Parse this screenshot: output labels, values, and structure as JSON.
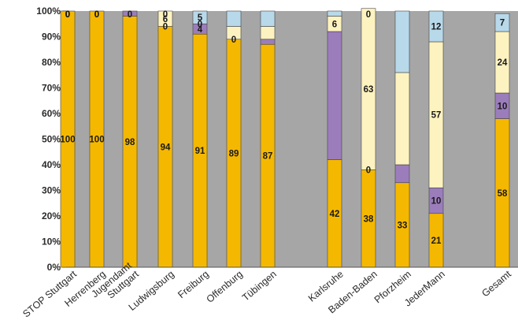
{
  "chart_data": {
    "type": "bar",
    "stacked": true,
    "percent": true,
    "ylim": [
      0,
      100
    ],
    "yticks": [
      "0%",
      "10%",
      "20%",
      "30%",
      "40%",
      "50%",
      "60%",
      "70%",
      "80%",
      "90%",
      "100%"
    ],
    "grid": false,
    "legend": "none",
    "colors": {
      "plot_bg": "#a6a6a6",
      "series": [
        "#f5b800",
        "#9b7dbb",
        "#fdf3c0",
        "#b8d9ea"
      ],
      "stroke": "#444444"
    },
    "categories": [
      {
        "label": "STOP Stuttgart",
        "values": [
          100,
          0,
          0,
          0
        ],
        "labels": [
          "100",
          "0",
          "0",
          "0"
        ]
      },
      {
        "label": "Herrenberg",
        "values": [
          100,
          0,
          0,
          0
        ],
        "labels": [
          "100",
          "0",
          "0",
          ""
        ]
      },
      {
        "label": "Jugendamt Stuttgart",
        "values": [
          98,
          2,
          0,
          0
        ],
        "labels": [
          "98",
          "",
          "0",
          ""
        ]
      },
      {
        "label": "Ludwigsburg",
        "values": [
          94,
          0,
          6,
          0
        ],
        "labels": [
          "94",
          "0",
          "6",
          "0"
        ]
      },
      {
        "label": "Freiburg",
        "values": [
          91,
          4,
          0,
          5
        ],
        "labels": [
          "91",
          "4",
          "0",
          "5"
        ]
      },
      {
        "label": "Offenburg",
        "values": [
          89,
          0,
          5,
          6
        ],
        "labels": [
          "89",
          "0",
          "",
          ""
        ]
      },
      {
        "label": "Tübingen",
        "values": [
          87,
          2,
          5,
          6
        ],
        "labels": [
          "87",
          "",
          "",
          ""
        ]
      },
      {
        "label": "Karlsruhe",
        "values": [
          42,
          50,
          6,
          2
        ],
        "labels": [
          "42",
          "",
          "6",
          ""
        ]
      },
      {
        "label": "Baden-Baden",
        "values": [
          38,
          0,
          63,
          0
        ],
        "labels": [
          "38",
          "0",
          "63",
          "0"
        ]
      },
      {
        "label": "Pforzheim",
        "values": [
          33,
          7,
          36,
          24
        ],
        "labels": [
          "33",
          "",
          "",
          ""
        ]
      },
      {
        "label": "JederMann",
        "values": [
          21,
          10,
          57,
          12
        ],
        "labels": [
          "21",
          "10",
          "57",
          "12"
        ]
      },
      {
        "label": "Gesamt",
        "values": [
          58,
          10,
          24,
          7
        ],
        "labels": [
          "58",
          "10",
          "24",
          "7"
        ]
      }
    ]
  }
}
